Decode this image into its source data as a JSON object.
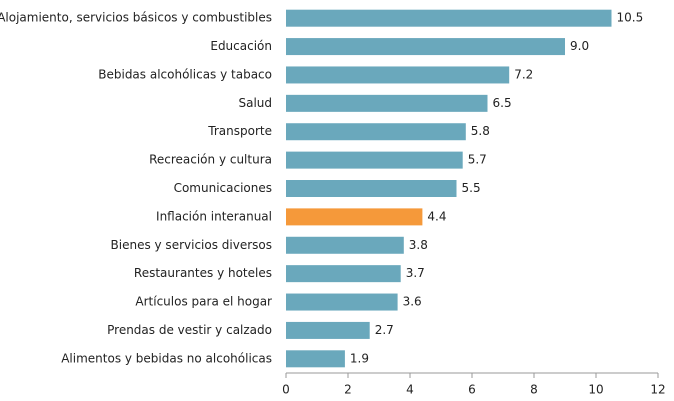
{
  "chart_data": {
    "type": "bar",
    "orientation": "horizontal",
    "categories": [
      "Alojamiento, servicios básicos y combustibles",
      "Educación",
      "Bebidas alcohólicas y tabaco",
      "Salud",
      "Transporte",
      "Recreación y cultura",
      "Comunicaciones",
      "Inflación interanual",
      "Bienes y servicios diversos",
      "Restaurantes y hoteles",
      "Artículos para el hogar",
      "Prendas de vestir y calzado",
      "Alimentos y bebidas no alcohólicas"
    ],
    "values": [
      10.5,
      9.0,
      7.2,
      6.5,
      5.8,
      5.7,
      5.5,
      4.4,
      3.8,
      3.7,
      3.6,
      2.7,
      1.9
    ],
    "value_labels": [
      "10.5",
      "9.0",
      "7.2",
      "6.5",
      "5.8",
      "5.7",
      "5.5",
      "4.4",
      "3.8",
      "3.7",
      "3.6",
      "2.7",
      "1.9"
    ],
    "colors": [
      "#6aa8bc",
      "#6aa8bc",
      "#6aa8bc",
      "#6aa8bc",
      "#6aa8bc",
      "#6aa8bc",
      "#6aa8bc",
      "#f5993a",
      "#6aa8bc",
      "#6aa8bc",
      "#6aa8bc",
      "#6aa8bc",
      "#6aa8bc"
    ],
    "xlim": [
      0,
      12
    ],
    "xticks": [
      0,
      2,
      4,
      6,
      8,
      10,
      12
    ],
    "grid": false
  }
}
